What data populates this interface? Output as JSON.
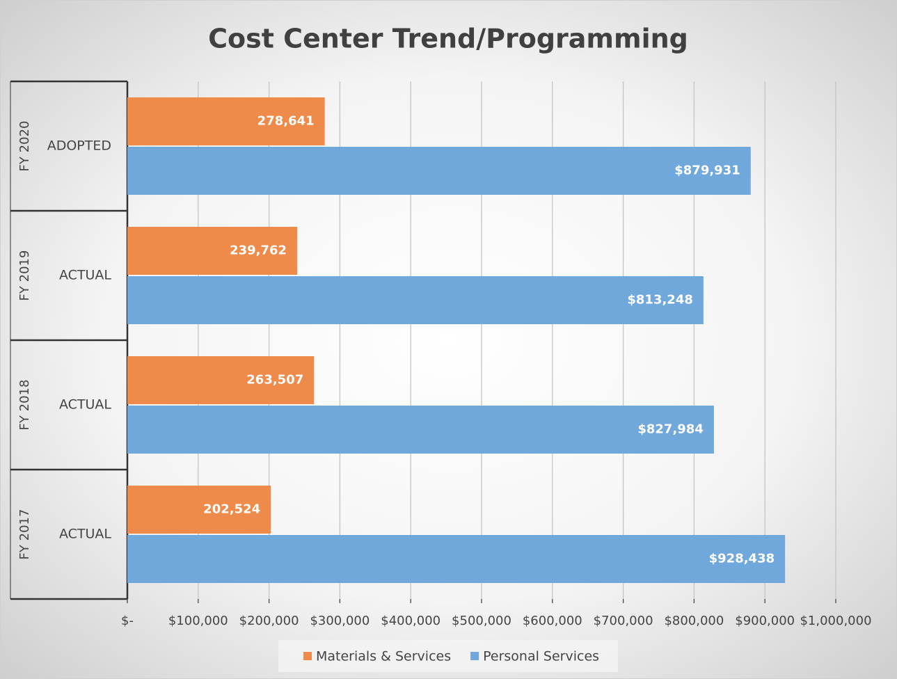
{
  "chart_data": {
    "type": "hbar",
    "title": "Cost Center Trend/Programming",
    "groups": [
      "FY 2020",
      "FY 2019",
      "FY 2018",
      "FY 2017"
    ],
    "categories": [
      "ADOPTED",
      "ACTUAL",
      "ACTUAL",
      "ACTUAL"
    ],
    "series": [
      {
        "name": "Materials & Services",
        "color": "#ee8b4a",
        "values": [
          278641,
          239762,
          263507,
          202524
        ],
        "value_labels": [
          "278,641",
          "239,762",
          "263,507",
          "202,524"
        ]
      },
      {
        "name": "Personal Services",
        "color": "#70a8dc",
        "values": [
          879931,
          813248,
          827984,
          928438
        ],
        "value_labels": [
          "$879,931",
          "$813,248",
          "$827,984",
          "$928,438"
        ]
      }
    ],
    "xlim": [
      0,
      1000000
    ],
    "xticks": [
      {
        "value": 0,
        "label": "$-"
      },
      {
        "value": 100000,
        "label": "$100,000"
      },
      {
        "value": 200000,
        "label": "$200,000"
      },
      {
        "value": 300000,
        "label": "$300,000"
      },
      {
        "value": 400000,
        "label": "$400,000"
      },
      {
        "value": 500000,
        "label": "$500,000"
      },
      {
        "value": 600000,
        "label": "$600,000"
      },
      {
        "value": 700000,
        "label": "$700,000"
      },
      {
        "value": 800000,
        "label": "$800,000"
      },
      {
        "value": 900000,
        "label": "$900,000"
      },
      {
        "value": 1000000,
        "label": "$1,000,000"
      }
    ],
    "grid": true,
    "legend": "bottom"
  }
}
